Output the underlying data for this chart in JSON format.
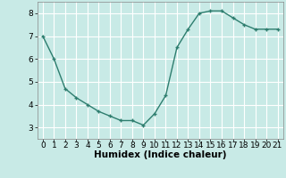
{
  "x": [
    0,
    1,
    2,
    3,
    4,
    5,
    6,
    7,
    8,
    9,
    10,
    11,
    12,
    13,
    14,
    15,
    16,
    17,
    18,
    19,
    20,
    21
  ],
  "y": [
    7.0,
    6.0,
    4.7,
    4.3,
    4.0,
    3.7,
    3.5,
    3.3,
    3.3,
    3.1,
    3.6,
    4.4,
    6.5,
    7.3,
    8.0,
    8.1,
    8.1,
    7.8,
    7.5,
    7.3,
    7.3,
    7.3
  ],
  "line_color": "#2d7d6e",
  "marker_color": "#2d7d6e",
  "bg_color": "#c8eae6",
  "grid_color": "#ffffff",
  "xlabel": "Humidex (Indice chaleur)",
  "xlabel_fontsize": 7.5,
  "tick_fontsize": 6.5,
  "ylim": [
    2.5,
    8.5
  ],
  "xlim": [
    -0.5,
    21.5
  ],
  "yticks": [
    3,
    4,
    5,
    6,
    7,
    8
  ],
  "xticks": [
    0,
    1,
    2,
    3,
    4,
    5,
    6,
    7,
    8,
    9,
    10,
    11,
    12,
    13,
    14,
    15,
    16,
    17,
    18,
    19,
    20,
    21
  ]
}
